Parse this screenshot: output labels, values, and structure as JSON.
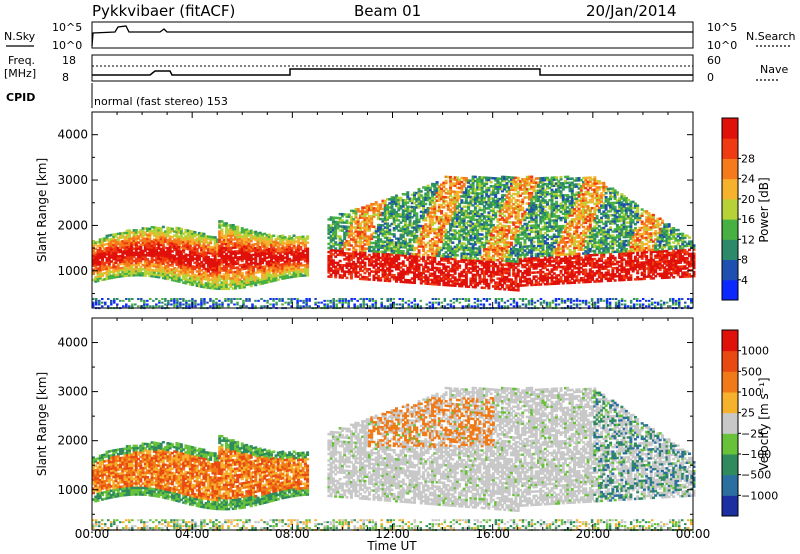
{
  "header": {
    "station": "Pykkvibaer (fitACF)",
    "beam": "Beam 01",
    "date": "20/Jan/2014"
  },
  "status_panels": {
    "nsky_label": "N.Sky",
    "nsky_ticks": [
      "10^5",
      "10^0"
    ],
    "nsearch_label": "N.Search",
    "nsearch_ticks": [
      "10^5",
      "10^0"
    ],
    "freq_label": "Freq.",
    "freq_unit": "[MHz]",
    "freq_ticks": [
      "18",
      "8"
    ],
    "nave_label": "Nave",
    "nave_ticks": [
      "60",
      "0"
    ],
    "cpid_label": "CPID",
    "cpid_text": "normal (fast stereo) 153"
  },
  "chart_data": [
    {
      "type": "heatmap",
      "name": "power",
      "ylabel": "Slant Range [km]",
      "ylim": [
        180,
        4500
      ],
      "yticks": [
        "1000",
        "2000",
        "3000",
        "4000"
      ],
      "xlim": [
        0,
        24
      ],
      "colorbar_label": "Power [dB]",
      "colorbar_ticks": [
        "4",
        "8",
        "12",
        "16",
        "20",
        "24",
        "28"
      ],
      "colorbar_colors": [
        "#0a28ff",
        "#1f4fb0",
        "#2c8a6a",
        "#47b043",
        "#b7d237",
        "#f6b12d",
        "#f57a1c",
        "#ef3a12",
        "#e0100a"
      ]
    },
    {
      "type": "heatmap",
      "name": "velocity",
      "ylabel": "Slant Range [km]",
      "ylim": [
        180,
        4500
      ],
      "yticks": [
        "1000",
        "2000",
        "3000",
        "4000"
      ],
      "xlim": [
        0,
        24
      ],
      "xticks": [
        "00:00",
        "04:00",
        "08:00",
        "12:00",
        "16:00",
        "20:00",
        "00:00"
      ],
      "xlabel": "Time UT",
      "colorbar_label": "Velocity [m s⁻¹]",
      "colorbar_ticks": [
        "1000",
        "500",
        "100",
        "25",
        "−25",
        "−100",
        "−500",
        "−1000"
      ],
      "colorbar_colors": [
        "#1c2fa0",
        "#2a6fa0",
        "#2f8a5e",
        "#67c23a",
        "#c8c8c8",
        "#f6b12d",
        "#f07a18",
        "#e94a12",
        "#e0100a"
      ]
    }
  ]
}
